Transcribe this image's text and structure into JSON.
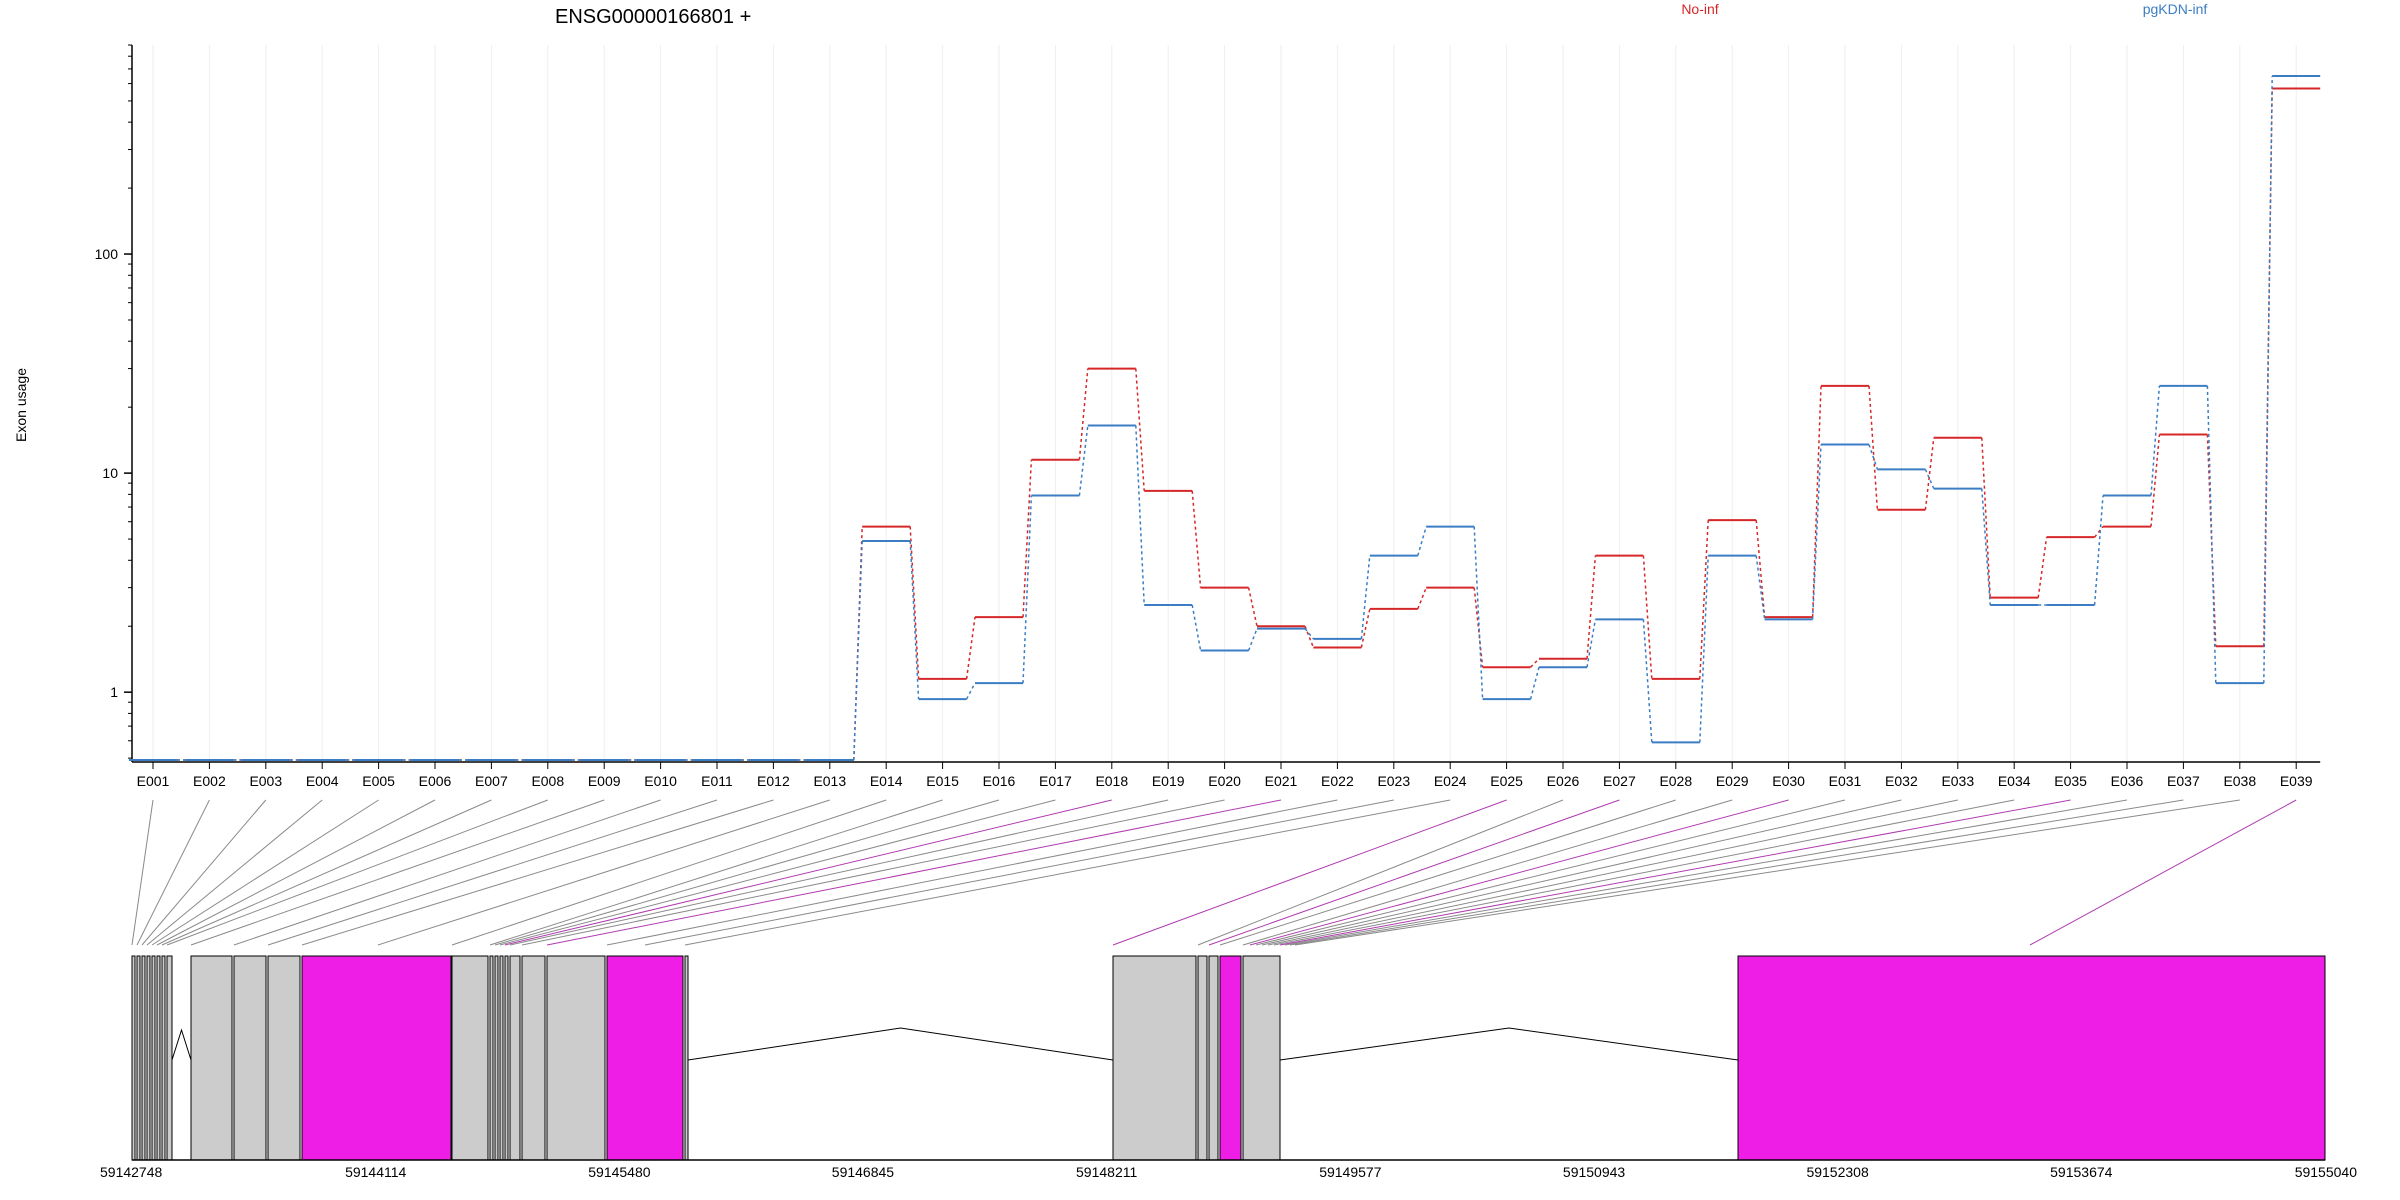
{
  "chart_data": {
    "type": "line",
    "title": "ENSG00000166801 +",
    "xlabel": "",
    "ylabel": "Exon usage",
    "y_scale": "log",
    "ylim": [
      0.48,
      900
    ],
    "y_ticks": [
      {
        "value": 1,
        "label": "1"
      },
      {
        "value": 10,
        "label": "10"
      },
      {
        "value": 100,
        "label": "100"
      }
    ],
    "grid": "vertical, faint, one per exon",
    "legend_placement": "top",
    "categories": [
      "E001",
      "E002",
      "E003",
      "E004",
      "E005",
      "E006",
      "E007",
      "E008",
      "E009",
      "E010",
      "E011",
      "E012",
      "E013",
      "E014",
      "E015",
      "E016",
      "E017",
      "E018",
      "E019",
      "E020",
      "E021",
      "E022",
      "E023",
      "E024",
      "E025",
      "E026",
      "E027",
      "E028",
      "E029",
      "E030",
      "E031",
      "E032",
      "E033",
      "E034",
      "E035",
      "E036",
      "E037",
      "E038",
      "E039"
    ],
    "series": [
      {
        "name": "No-inf",
        "color": "#d62728",
        "values": [
          0.49,
          0.49,
          0.49,
          0.49,
          0.49,
          0.49,
          0.49,
          0.49,
          0.49,
          0.49,
          0.49,
          0.49,
          0.49,
          5.7,
          1.15,
          2.2,
          11.5,
          30,
          8.3,
          3.0,
          2.0,
          1.6,
          2.4,
          3.0,
          1.3,
          1.42,
          4.2,
          1.15,
          6.1,
          2.2,
          25,
          6.8,
          14.5,
          2.7,
          5.1,
          5.7,
          15,
          1.62,
          570
        ]
      },
      {
        "name": "pgKDN-inf",
        "color": "#3b7dc4",
        "values": [
          0.49,
          0.49,
          0.49,
          0.49,
          0.49,
          0.49,
          0.49,
          0.49,
          0.49,
          0.49,
          0.49,
          0.49,
          0.49,
          4.9,
          0.93,
          1.1,
          7.9,
          16.5,
          2.5,
          1.55,
          1.95,
          1.75,
          4.2,
          5.7,
          0.93,
          1.3,
          2.15,
          0.59,
          4.2,
          2.15,
          13.5,
          10.4,
          8.5,
          2.5,
          2.5,
          7.9,
          25,
          1.1,
          650
        ]
      }
    ],
    "gene_model": {
      "coordinate_ticks": [
        59142748,
        59144114,
        59145480,
        59146845,
        59148211,
        59149577,
        59150943,
        59152308,
        59153674,
        59155040
      ],
      "exon_link_colors": {
        "default": "#8a8a8a",
        "highlighted": "#b03bb0"
      },
      "exon_fill_colors": {
        "default": "#cccccc",
        "highlighted": "#ee1ee6"
      },
      "highlighted_exons": [
        "E018",
        "E021",
        "E025",
        "E027",
        "E030",
        "E035",
        "E039"
      ]
    }
  }
}
